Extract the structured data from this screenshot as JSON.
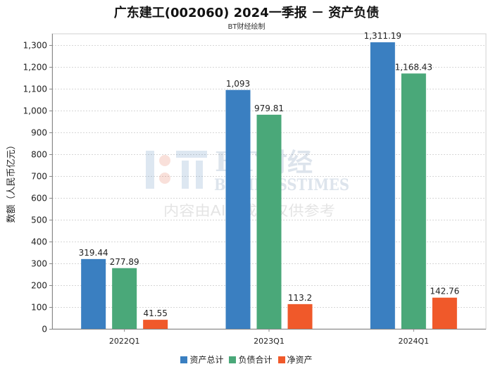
{
  "chart_data": {
    "type": "bar",
    "title": "广东建工(002060) 2024一季报 － 资产负债",
    "subtitle": "BT财经绘制",
    "ylabel": "数额（人民币亿元）",
    "xlabel": "",
    "ylim": [
      0,
      1350
    ],
    "yticks": [
      0,
      100,
      200,
      300,
      400,
      500,
      600,
      700,
      800,
      900,
      1000,
      1100,
      1200,
      1300
    ],
    "ytick_labels": [
      "0",
      "100",
      "200",
      "300",
      "400",
      "500",
      "600",
      "700",
      "800",
      "900",
      "1,000",
      "1,100",
      "1,200",
      "1,300"
    ],
    "grid": true,
    "legend_position": "bottom",
    "categories": [
      "2022Q1",
      "2023Q1",
      "2024Q1"
    ],
    "series": [
      {
        "name": "资产总计",
        "color": "#3a7fc1",
        "values": [
          319.44,
          1093,
          1311.19
        ],
        "labels": [
          "319.44",
          "1,093",
          "1,311.19"
        ]
      },
      {
        "name": "负债合计",
        "color": "#4aa879",
        "values": [
          277.89,
          979.81,
          1168.43
        ],
        "labels": [
          "277.89",
          "979.81",
          "1,168.43"
        ]
      },
      {
        "name": "净资产",
        "color": "#f0592a",
        "values": [
          41.55,
          113.2,
          142.76
        ],
        "labels": [
          "41.55",
          "113.2",
          "142.76"
        ]
      }
    ]
  },
  "watermark": {
    "brand_en": "BT",
    "brand_cn": "财经",
    "tagline": "BUSINESSTIMES",
    "notice": "内容由AI生成，仅供参考"
  }
}
